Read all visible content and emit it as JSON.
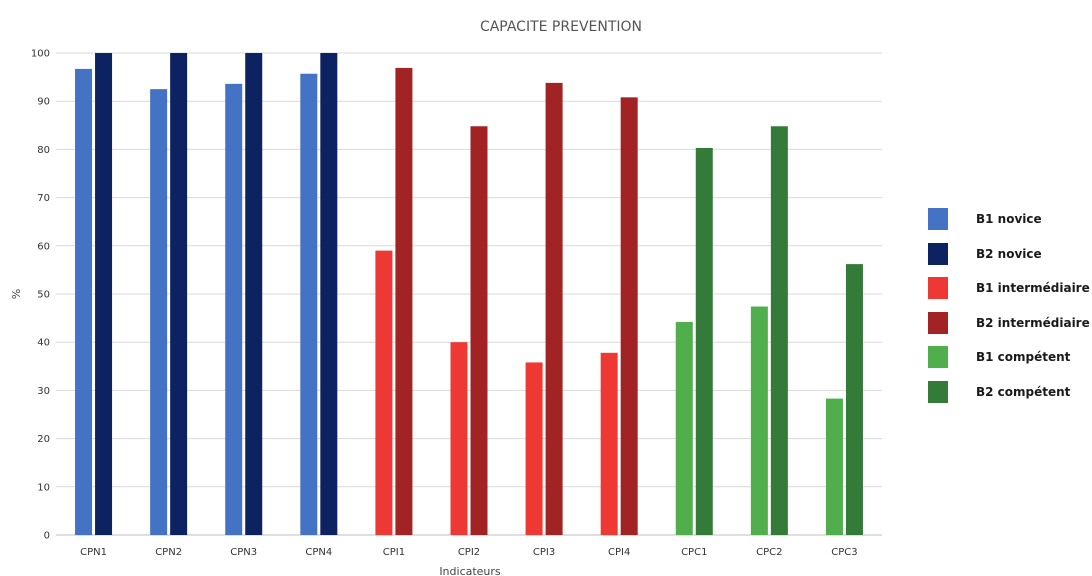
{
  "chart_data": {
    "type": "bar",
    "title": "CAPACITE PREVENTION",
    "xlabel": "Indicateurs",
    "ylabel": "%",
    "ylim": [
      0,
      100
    ],
    "yticks": [
      0,
      10,
      20,
      30,
      40,
      50,
      60,
      70,
      80,
      90,
      100
    ],
    "grid": true,
    "legend_position": "right",
    "categories": [
      "CPN1",
      "CPN2",
      "CPN3",
      "CPN4",
      "CPI1",
      "CPI2",
      "CPI3",
      "CPI4",
      "CPC1",
      "CPC2",
      "CPC3"
    ],
    "series": [
      {
        "name": "B1 novice",
        "color": "#4472C4",
        "values": [
          96.7,
          92.5,
          93.6,
          95.7,
          null,
          null,
          null,
          null,
          null,
          null,
          null
        ]
      },
      {
        "name": "B2 novice",
        "color": "#0D2260",
        "values": [
          100,
          100,
          100,
          100,
          null,
          null,
          null,
          null,
          null,
          null,
          null
        ]
      },
      {
        "name": "B1 intermédiaire",
        "color": "#EE3833",
        "values": [
          null,
          null,
          null,
          null,
          59,
          40,
          35.8,
          37.8,
          null,
          null,
          null
        ]
      },
      {
        "name": "B2 intermédiaire",
        "color": "#A12323",
        "values": [
          null,
          null,
          null,
          null,
          96.9,
          84.8,
          93.8,
          90.8,
          null,
          null,
          null
        ]
      },
      {
        "name": "B1 compétent",
        "color": "#50AE4C",
        "values": [
          null,
          null,
          null,
          null,
          null,
          null,
          null,
          null,
          44.2,
          47.4,
          28.3
        ]
      },
      {
        "name": "B2 compétent",
        "color": "#347A39",
        "values": [
          null,
          null,
          null,
          null,
          null,
          null,
          null,
          null,
          80.3,
          84.8,
          56.2
        ]
      }
    ]
  }
}
